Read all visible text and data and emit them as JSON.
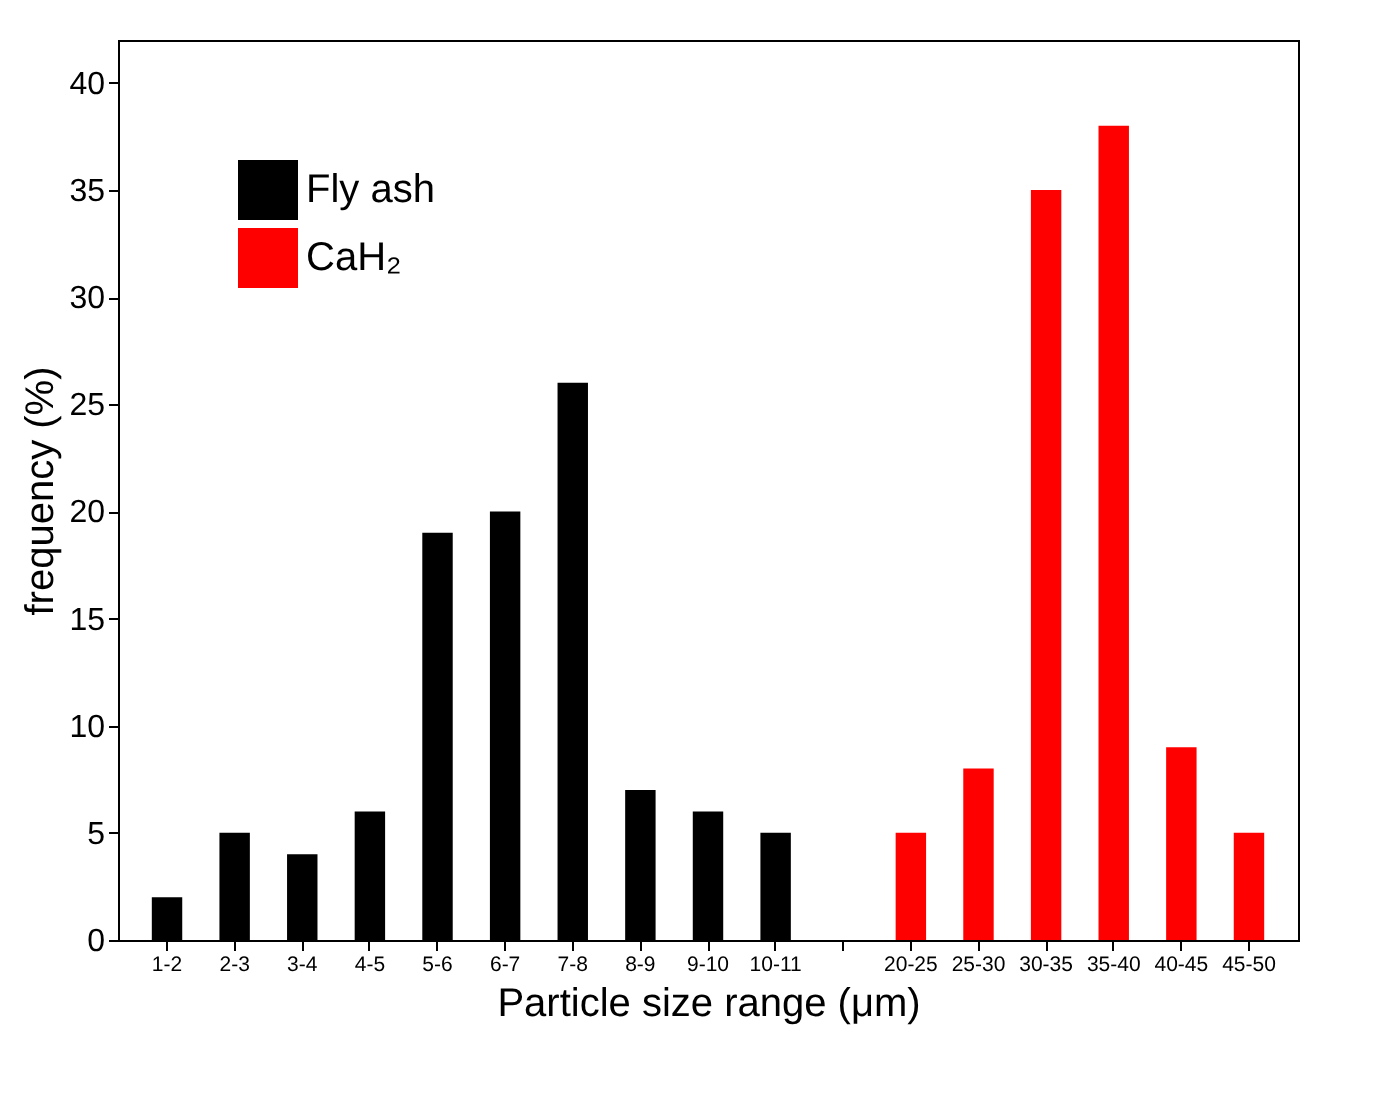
{
  "chart_data": {
    "type": "bar",
    "xlabel": "Particle size range (μm)",
    "ylabel": "frequency (%)",
    "categories": [
      "1-2",
      "2-3",
      "3-4",
      "4-5",
      "5-6",
      "6-7",
      "7-8",
      "8-9",
      "9-10",
      "10-11",
      null,
      "20-25",
      "25-30",
      "30-35",
      "35-40",
      "40-45",
      "45-50"
    ],
    "series": [
      {
        "name": "Fly ash",
        "color": "#000000",
        "values": [
          2,
          5,
          4,
          6,
          19,
          20,
          26,
          7,
          6,
          5,
          null,
          null,
          null,
          null,
          null,
          null,
          null
        ]
      },
      {
        "name": "CaH₂",
        "color": "#ff0000",
        "values": [
          null,
          null,
          null,
          null,
          null,
          null,
          null,
          null,
          null,
          null,
          null,
          5,
          8,
          35,
          38,
          9,
          5
        ]
      }
    ],
    "ylim": [
      0,
      42
    ],
    "yticks": [
      0,
      5,
      10,
      15,
      20,
      25,
      30,
      35,
      40
    ],
    "grid": false,
    "legend": "top left"
  }
}
